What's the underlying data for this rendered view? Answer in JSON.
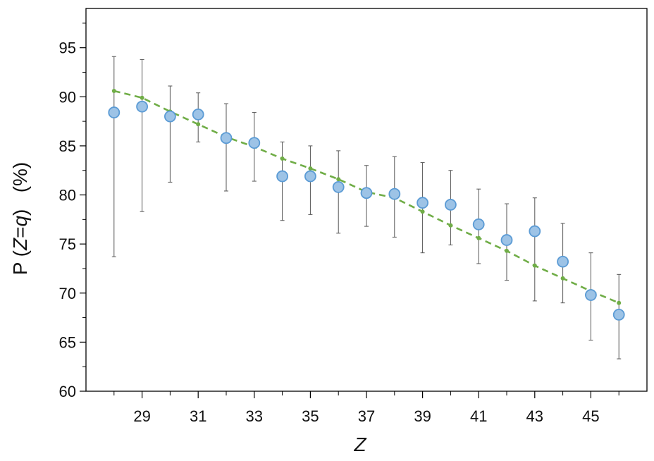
{
  "chart_data": {
    "type": "scatter",
    "xlabel": "Z",
    "ylabel": {
      "prefix": "P (",
      "var1": "Z",
      "eq": "=",
      "var2": "q",
      "suffix": ")   (%)"
    },
    "xlim": [
      27,
      47
    ],
    "ylim": [
      60,
      99
    ],
    "x_ticks": [
      29,
      31,
      33,
      35,
      37,
      39,
      41,
      43,
      45
    ],
    "x_minor_ticks": [
      28,
      30,
      32,
      34,
      36,
      38,
      40,
      42,
      44,
      46
    ],
    "y_ticks": [
      60,
      65,
      70,
      75,
      80,
      85,
      90,
      95
    ],
    "grid": false,
    "colors": {
      "marker_fill": "#9dc3e6",
      "marker_stroke": "#5b9bd5",
      "fit_line": "#70ad47",
      "error_bar": "#555555",
      "axis": "#000000"
    },
    "series": [
      {
        "kind": "measured",
        "x": [
          28,
          29,
          30,
          31,
          32,
          33,
          34,
          35,
          36,
          37,
          38,
          39,
          40,
          41,
          42,
          43,
          44,
          45,
          46
        ],
        "y": [
          88.4,
          89.0,
          88.0,
          88.2,
          85.8,
          85.3,
          81.9,
          81.9,
          80.8,
          80.2,
          80.1,
          79.2,
          79.0,
          77.0,
          75.4,
          76.3,
          73.2,
          69.8,
          67.8
        ],
        "y_upper": [
          94.1,
          93.8,
          91.1,
          90.4,
          89.3,
          88.4,
          85.4,
          85.0,
          84.5,
          83.0,
          83.9,
          83.3,
          82.5,
          80.6,
          79.1,
          79.7,
          77.1,
          74.1,
          71.9
        ],
        "y_lower": [
          73.7,
          78.3,
          81.3,
          85.4,
          80.4,
          81.4,
          77.4,
          78.0,
          76.1,
          76.8,
          75.7,
          74.1,
          74.9,
          73.0,
          71.3,
          69.2,
          69.0,
          65.2,
          63.3
        ]
      },
      {
        "kind": "fit",
        "x": [
          28,
          29,
          30,
          31,
          32,
          33,
          34,
          35,
          36,
          37,
          38,
          39,
          40,
          41,
          42,
          43,
          44,
          45,
          46
        ],
        "y": [
          90.6,
          89.9,
          88.5,
          87.2,
          85.9,
          84.9,
          83.7,
          82.7,
          81.6,
          80.3,
          79.7,
          78.3,
          76.9,
          75.6,
          74.3,
          72.8,
          71.5,
          70.2,
          69.0
        ]
      }
    ]
  }
}
